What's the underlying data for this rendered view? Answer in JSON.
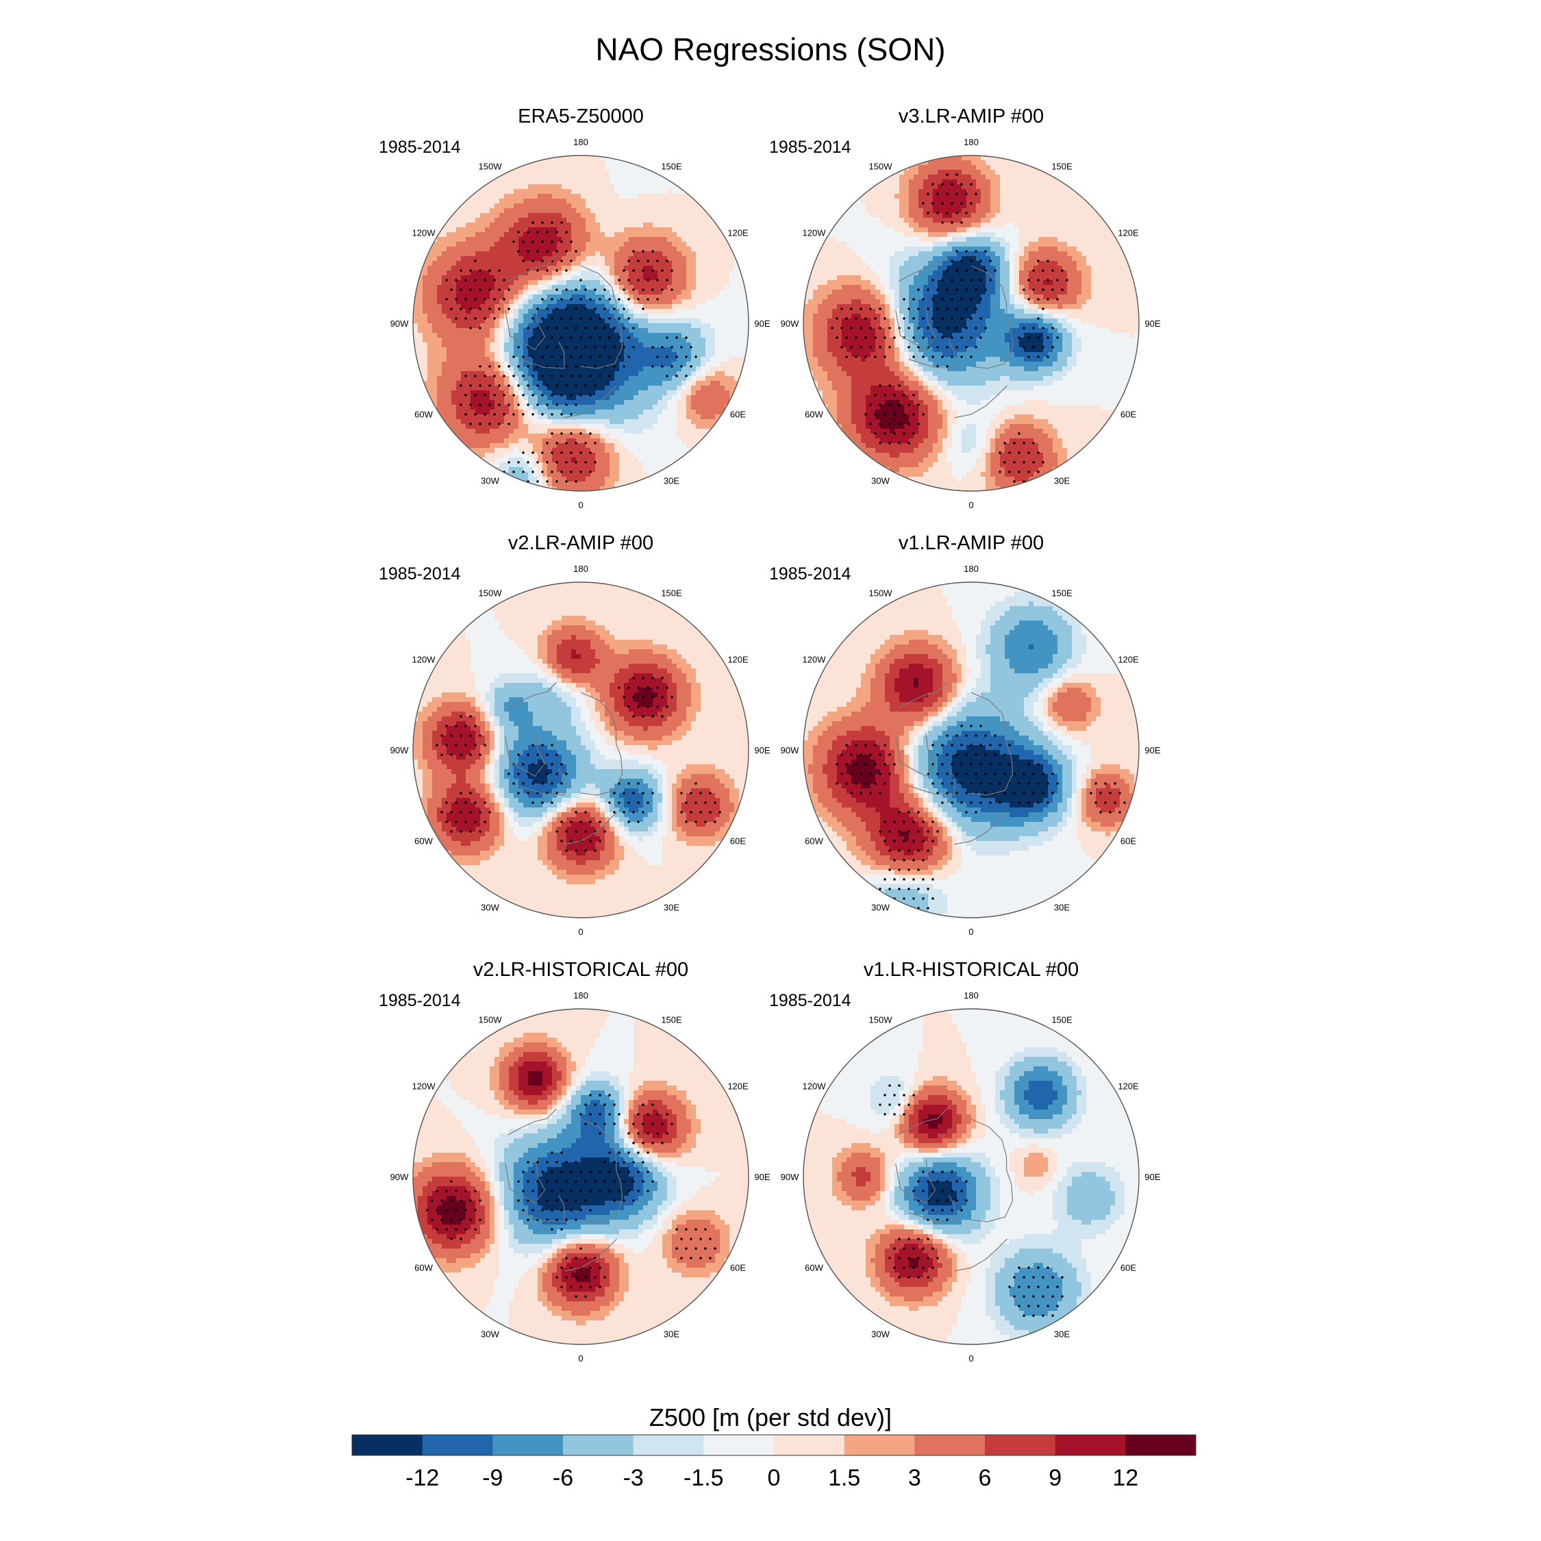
{
  "figure": {
    "title": "NAO Regressions (SON)",
    "colorbar_title": "Z500 [m (per std dev)]"
  },
  "colorbar": {
    "levels": [
      "-12",
      "-9",
      "-6",
      "-3",
      "-1.5",
      "0",
      "1.5",
      "3",
      "6",
      "9",
      "12"
    ],
    "colors": [
      "#053061",
      "#2166ac",
      "#4393c3",
      "#92c5de",
      "#d1e5f0",
      "#f0f3f5",
      "#fbe3d8",
      "#f4a582",
      "#e0735d",
      "#c43c3c",
      "#a5132a",
      "#67001f"
    ]
  },
  "longitude_labels": [
    "180",
    "150E",
    "120E",
    "90E",
    "60E",
    "30E",
    "0",
    "30W",
    "60W",
    "90W",
    "120W",
    "150W"
  ],
  "chart_data": [
    {
      "type": "heatmap",
      "projection": "north-polar-stereographic",
      "title": "ERA5-Z50000",
      "period": "1985-2014",
      "variable": "Z500 regression on NAO index",
      "units": "m (per std dev)",
      "features": [
        {
          "lon": 0,
          "lat": 85,
          "value": -14,
          "spread": 22,
          "stipple": true
        },
        {
          "lon": 330,
          "lat": 65,
          "value": -10,
          "spread": 18,
          "stipple": true
        },
        {
          "lon": 205,
          "lat": 55,
          "value": 13,
          "spread": 13,
          "stipple": true
        },
        {
          "lon": 255,
          "lat": 45,
          "value": 12,
          "spread": 14,
          "stipple": true
        },
        {
          "lon": 310,
          "lat": 42,
          "value": 14,
          "spread": 14,
          "stipple": true
        },
        {
          "lon": 355,
          "lat": 35,
          "value": 12,
          "spread": 12,
          "stipple": true
        },
        {
          "lon": 125,
          "lat": 58,
          "value": 13,
          "spread": 12,
          "stipple": true
        },
        {
          "lon": 70,
          "lat": 48,
          "value": -7,
          "spread": 10,
          "stipple": true
        },
        {
          "lon": 60,
          "lat": 30,
          "value": 6,
          "spread": 9,
          "stipple": false
        },
        {
          "lon": 340,
          "lat": 22,
          "value": -6,
          "spread": 10,
          "stipple": true
        }
      ]
    },
    {
      "type": "heatmap",
      "projection": "north-polar-stereographic",
      "title": "v3.LR-AMIP  #00",
      "period": "1985-2014",
      "variable": "Z500 regression on NAO index",
      "units": "m (per std dev)",
      "features": [
        {
          "lon": 270,
          "lat": 78,
          "value": -13,
          "spread": 18,
          "stipple": true
        },
        {
          "lon": 180,
          "lat": 68,
          "value": -11,
          "spread": 10,
          "stipple": true
        },
        {
          "lon": 75,
          "lat": 62,
          "value": -13,
          "spread": 9,
          "stipple": true
        },
        {
          "lon": 275,
          "lat": 45,
          "value": 13,
          "spread": 13,
          "stipple": true
        },
        {
          "lon": 320,
          "lat": 40,
          "value": 14,
          "spread": 13,
          "stipple": true
        },
        {
          "lon": 190,
          "lat": 38,
          "value": 12,
          "spread": 11,
          "stipple": true
        },
        {
          "lon": 118,
          "lat": 55,
          "value": 10,
          "spread": 10,
          "stipple": true
        },
        {
          "lon": 20,
          "lat": 30,
          "value": 9,
          "spread": 10,
          "stipple": true
        },
        {
          "lon": 0,
          "lat": 40,
          "value": -3,
          "spread": 8,
          "stipple": false
        }
      ]
    },
    {
      "type": "heatmap",
      "projection": "north-polar-stereographic",
      "title": "v2.LR-AMIP  #00",
      "period": "1985-2014",
      "variable": "Z500 regression on NAO index",
      "units": "m (per std dev)",
      "features": [
        {
          "lon": 300,
          "lat": 70,
          "value": -13,
          "spread": 13,
          "stipple": true
        },
        {
          "lon": 45,
          "lat": 60,
          "value": -11,
          "spread": 9,
          "stipple": true
        },
        {
          "lon": 200,
          "lat": 62,
          "value": -5,
          "spread": 10,
          "stipple": false
        },
        {
          "lon": 185,
          "lat": 52,
          "value": 11,
          "spread": 9,
          "stipple": false
        },
        {
          "lon": 130,
          "lat": 55,
          "value": 13,
          "spread": 11,
          "stipple": true
        },
        {
          "lon": 265,
          "lat": 40,
          "value": 12,
          "spread": 10,
          "stipple": true
        },
        {
          "lon": 300,
          "lat": 35,
          "value": 12,
          "spread": 10,
          "stipple": true
        },
        {
          "lon": 0,
          "lat": 55,
          "value": 13,
          "spread": 10,
          "stipple": true
        },
        {
          "lon": 65,
          "lat": 35,
          "value": 9,
          "spread": 9,
          "stipple": true
        },
        {
          "lon": 240,
          "lat": 55,
          "value": -6,
          "spread": 8,
          "stipple": false
        }
      ]
    },
    {
      "type": "heatmap",
      "projection": "north-polar-stereographic",
      "title": "v1.LR-AMIP  #00",
      "period": "1985-2014",
      "variable": "Z500 regression on NAO index",
      "units": "m (per std dev)",
      "features": [
        {
          "lon": 0,
          "lat": 82,
          "value": -14,
          "spread": 18,
          "stipple": true
        },
        {
          "lon": 60,
          "lat": 60,
          "value": -12,
          "spread": 10,
          "stipple": true
        },
        {
          "lon": 150,
          "lat": 40,
          "value": -9,
          "spread": 12,
          "stipple": false
        },
        {
          "lon": 335,
          "lat": 25,
          "value": -6,
          "spread": 12,
          "stipple": true
        },
        {
          "lon": 220,
          "lat": 55,
          "value": 13,
          "spread": 11,
          "stipple": false
        },
        {
          "lon": 280,
          "lat": 45,
          "value": 14,
          "spread": 13,
          "stipple": true
        },
        {
          "lon": 325,
          "lat": 45,
          "value": 14,
          "spread": 12,
          "stipple": true
        },
        {
          "lon": 70,
          "lat": 30,
          "value": 8,
          "spread": 8,
          "stipple": true
        },
        {
          "lon": 115,
          "lat": 45,
          "value": 6,
          "spread": 8,
          "stipple": false
        }
      ]
    },
    {
      "type": "heatmap",
      "projection": "north-polar-stereographic",
      "title": "v2.LR-HISTORICAL  #00",
      "period": "1985-2014",
      "variable": "Z500 regression on NAO index",
      "units": "m (per std dev)",
      "features": [
        {
          "lon": 300,
          "lat": 78,
          "value": -14,
          "spread": 16,
          "stipple": true
        },
        {
          "lon": 90,
          "lat": 72,
          "value": -12,
          "spread": 12,
          "stipple": true
        },
        {
          "lon": 165,
          "lat": 62,
          "value": -10,
          "spread": 9,
          "stipple": true
        },
        {
          "lon": 205,
          "lat": 45,
          "value": 13,
          "spread": 9,
          "stipple": false
        },
        {
          "lon": 125,
          "lat": 55,
          "value": 13,
          "spread": 10,
          "stipple": true
        },
        {
          "lon": 285,
          "lat": 35,
          "value": 14,
          "spread": 12,
          "stipple": true
        },
        {
          "lon": 0,
          "lat": 50,
          "value": 14,
          "spread": 10,
          "stipple": true
        },
        {
          "lon": 60,
          "lat": 35,
          "value": 6,
          "spread": 9,
          "stipple": true
        }
      ]
    },
    {
      "type": "heatmap",
      "projection": "north-polar-stereographic",
      "title": "v1.LR-HISTORICAL  #00",
      "period": "1985-2014",
      "variable": "Z500 regression on NAO index",
      "units": "m (per std dev)",
      "features": [
        {
          "lon": 300,
          "lat": 75,
          "value": -14,
          "spread": 12,
          "stipple": true
        },
        {
          "lon": 140,
          "lat": 45,
          "value": -11,
          "spread": 10,
          "stipple": false
        },
        {
          "lon": 30,
          "lat": 35,
          "value": -9,
          "spread": 12,
          "stipple": true
        },
        {
          "lon": 80,
          "lat": 40,
          "value": -5,
          "spread": 10,
          "stipple": false
        },
        {
          "lon": 225,
          "lat": 45,
          "value": -4,
          "spread": 8,
          "stipple": true
        },
        {
          "lon": 215,
          "lat": 62,
          "value": 14,
          "spread": 9,
          "stipple": false
        },
        {
          "lon": 325,
          "lat": 48,
          "value": 13,
          "spread": 10,
          "stipple": true
        },
        {
          "lon": 270,
          "lat": 45,
          "value": 7,
          "spread": 8,
          "stipple": false
        },
        {
          "lon": 100,
          "lat": 62,
          "value": 3,
          "spread": 6,
          "stipple": false
        }
      ]
    }
  ]
}
